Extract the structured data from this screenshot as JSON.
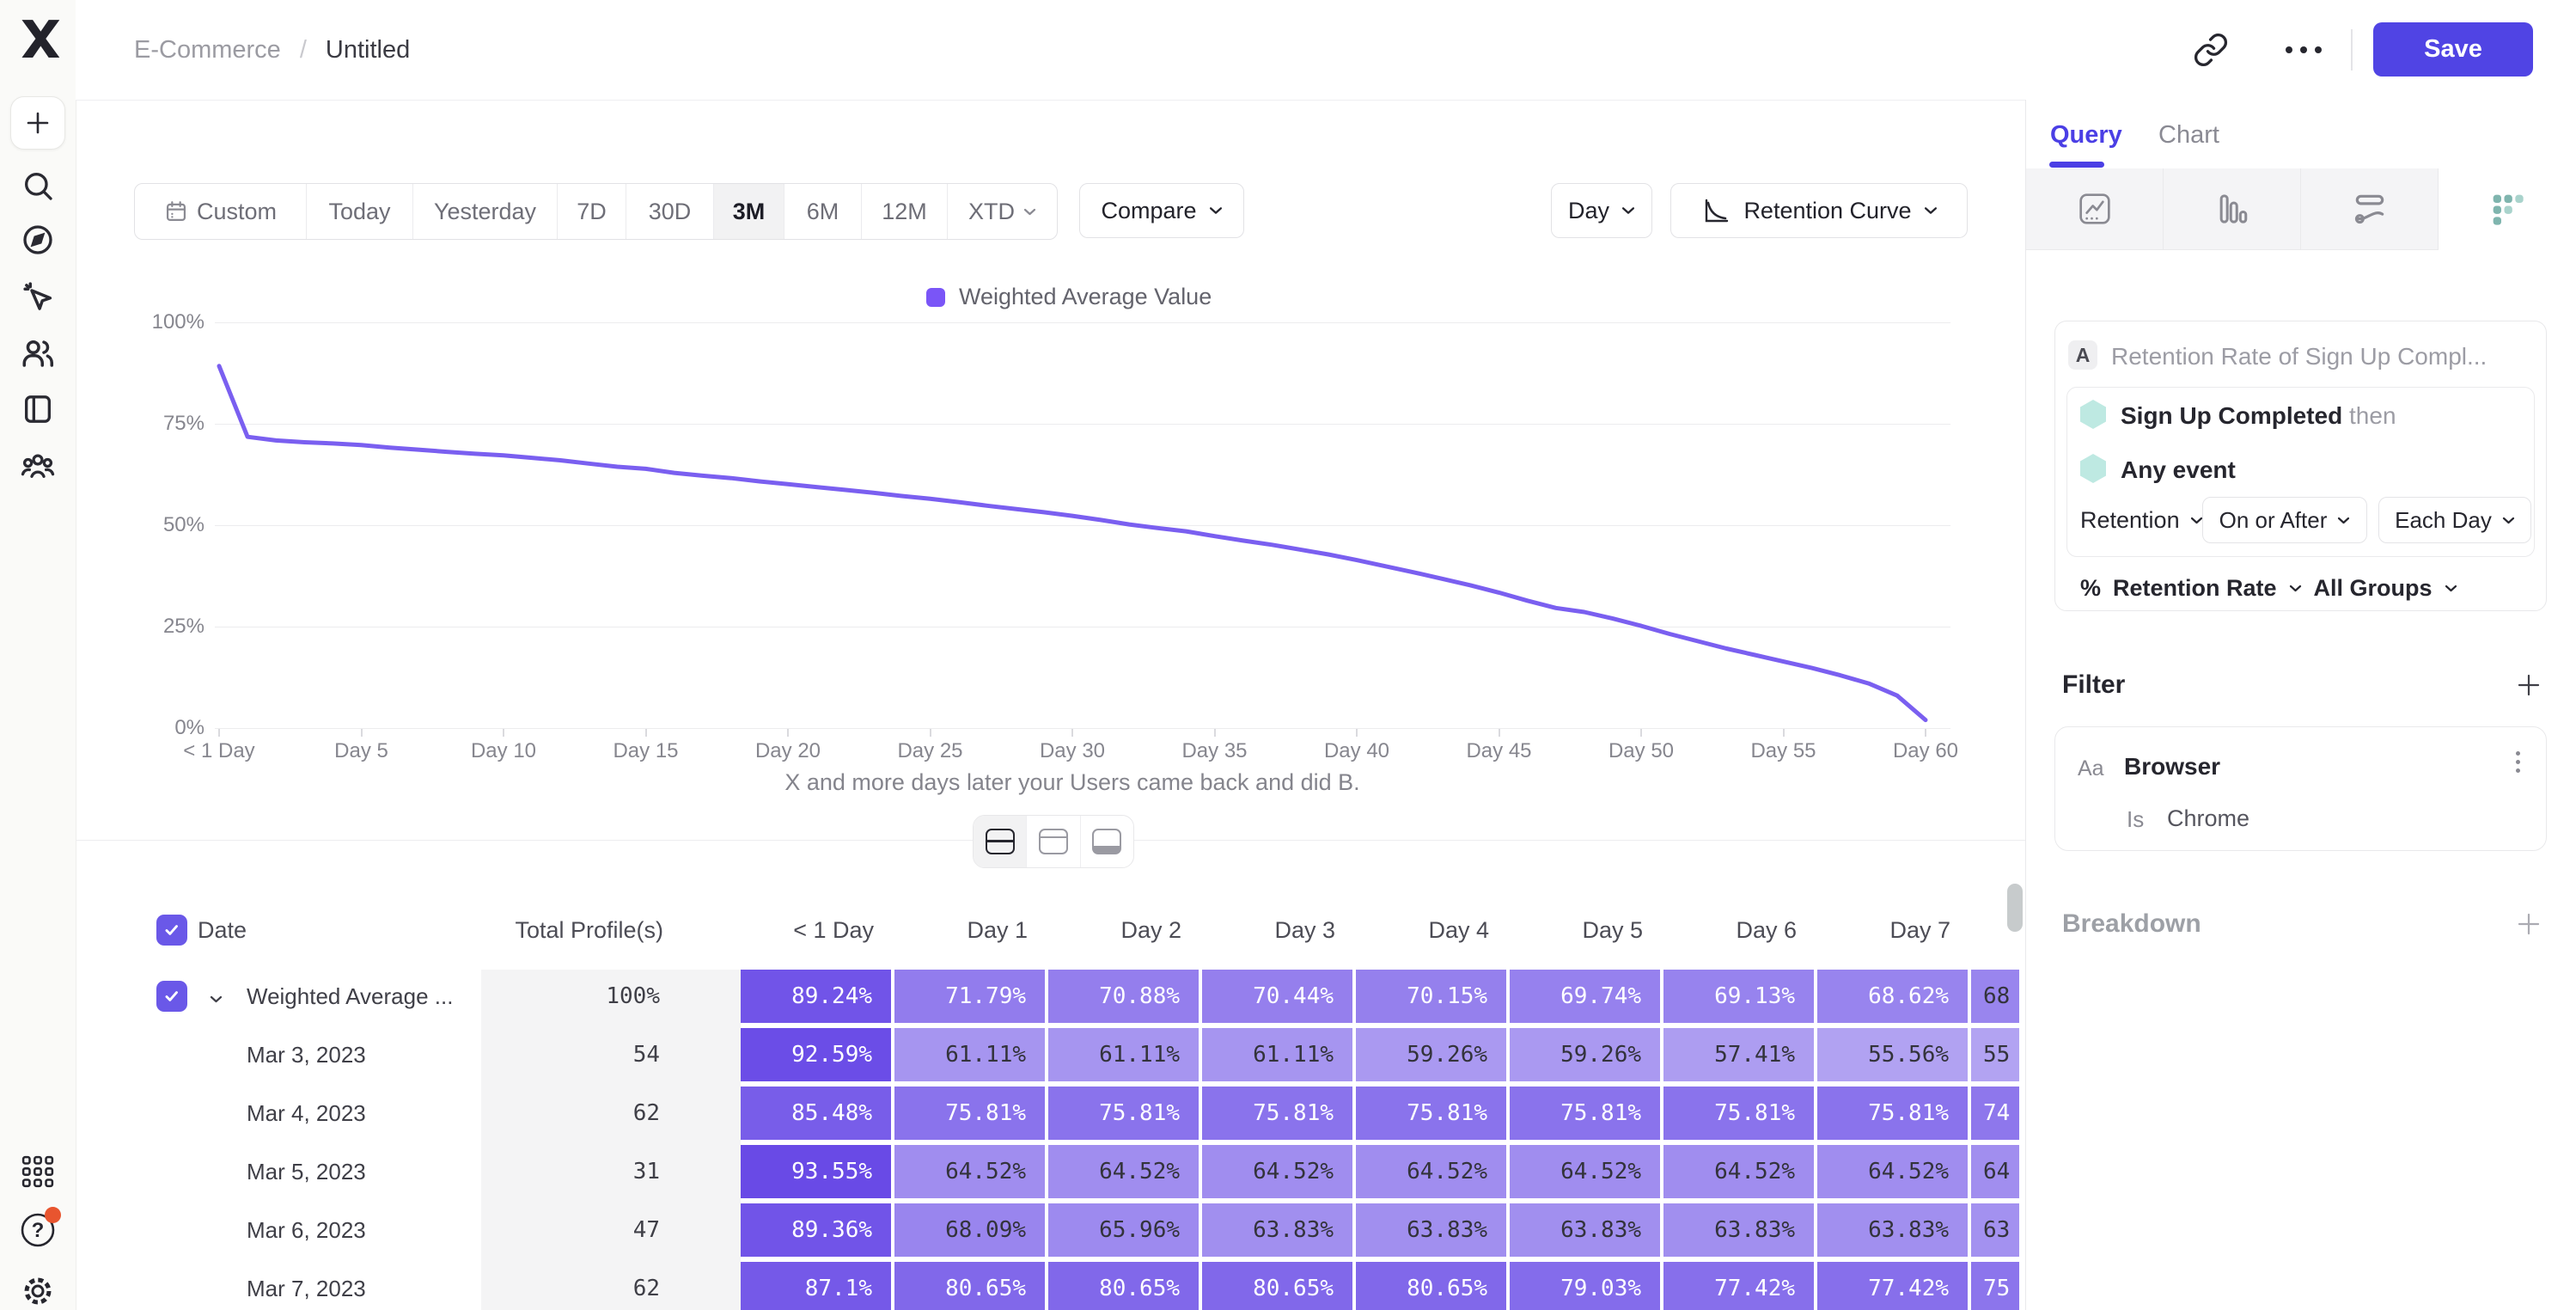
{
  "colors": {
    "accent": "#4b3fe5",
    "save_button": "#5044e4",
    "line": "#7a5ff0",
    "legend_swatch": "#7a55f7",
    "cell_scale_light": "#b2a3f2",
    "cell_scale_dark": "#6647e6",
    "hexagon": "#bee9e2",
    "notification_dot": "#e8552f"
  },
  "sidebar": {
    "icons": [
      "logo",
      "new-plus",
      "search",
      "compass",
      "pointer-click",
      "users",
      "notebook",
      "people-group",
      "apps-grid",
      "help",
      "settings-gear"
    ]
  },
  "breadcrumb": {
    "section": "E-Commerce",
    "separator": "/",
    "page": "Untitled"
  },
  "topbar": {
    "save": "Save"
  },
  "toolbar": {
    "ranges": [
      "Custom",
      "Today",
      "Yesterday",
      "7D",
      "30D",
      "3M",
      "6M",
      "12M",
      "XTD"
    ],
    "active_range": "3M",
    "compare": "Compare",
    "granularity": "Day",
    "chart_type": "Retention Curve"
  },
  "chart_data": {
    "type": "line",
    "title": "",
    "legend": [
      "Weighted Average Value"
    ],
    "legend_position": "top",
    "grid": "horizontal",
    "xlabel": "X and more days later your Users came back and did B.",
    "x_tick_labels": [
      "< 1 Day",
      "Day 5",
      "Day 10",
      "Day 15",
      "Day 20",
      "Day 25",
      "Day 30",
      "Day 35",
      "Day 40",
      "Day 45",
      "Day 50",
      "Day 55",
      "Day 60"
    ],
    "y_tick_labels": [
      "100%",
      "75%",
      "50%",
      "25%",
      "0%"
    ],
    "xlim": [
      0,
      60
    ],
    "ylim": [
      0,
      100
    ],
    "series": [
      {
        "name": "Weighted Average Value",
        "color": "#7a5ff0",
        "x_unit": "day",
        "values": [
          89.24,
          71.79,
          70.88,
          70.44,
          70.15,
          69.74,
          69.13,
          68.62,
          68.1,
          67.6,
          67.2,
          66.6,
          66.0,
          65.2,
          64.4,
          63.9,
          62.9,
          62.2,
          61.6,
          60.8,
          60.1,
          59.4,
          58.7,
          58.0,
          57.2,
          56.5,
          55.7,
          54.8,
          54.0,
          53.2,
          52.3,
          51.3,
          50.2,
          49.3,
          48.5,
          47.3,
          46.2,
          45.2,
          44.0,
          42.8,
          41.4,
          39.9,
          38.4,
          36.8,
          35.2,
          33.4,
          31.4,
          29.6,
          28.6,
          27.0,
          25.2,
          23.2,
          21.4,
          19.6,
          18.0,
          16.4,
          14.8,
          13.0,
          11.0,
          8.0,
          2.0
        ]
      }
    ]
  },
  "view_toggles": {
    "options": [
      "split-view",
      "chart-only-view",
      "table-only-view"
    ],
    "active": "split-view"
  },
  "table": {
    "select_all_checked": true,
    "columns": [
      "Date",
      "Total Profile(s)",
      "< 1 Day",
      "Day 1",
      "Day 2",
      "Day 3",
      "Day 4",
      "Day 5",
      "Day 6",
      "Day 7"
    ],
    "rows": [
      {
        "label": "Weighted Average ...",
        "checked": true,
        "expandable": true,
        "total": "100%",
        "values": [
          "89.24%",
          "71.79%",
          "70.88%",
          "70.44%",
          "70.15%",
          "69.74%",
          "69.13%",
          "68.62%",
          "68"
        ]
      },
      {
        "label": "Mar 3, 2023",
        "total": "54",
        "values": [
          "92.59%",
          "61.11%",
          "61.11%",
          "61.11%",
          "59.26%",
          "59.26%",
          "57.41%",
          "55.56%",
          "55"
        ]
      },
      {
        "label": "Mar 4, 2023",
        "total": "62",
        "values": [
          "85.48%",
          "75.81%",
          "75.81%",
          "75.81%",
          "75.81%",
          "75.81%",
          "75.81%",
          "75.81%",
          "74"
        ]
      },
      {
        "label": "Mar 5, 2023",
        "total": "31",
        "values": [
          "93.55%",
          "64.52%",
          "64.52%",
          "64.52%",
          "64.52%",
          "64.52%",
          "64.52%",
          "64.52%",
          "64"
        ]
      },
      {
        "label": "Mar 6, 2023",
        "total": "47",
        "values": [
          "89.36%",
          "68.09%",
          "65.96%",
          "63.83%",
          "63.83%",
          "63.83%",
          "63.83%",
          "63.83%",
          "63"
        ]
      },
      {
        "label": "Mar 7, 2023",
        "total": "62",
        "values": [
          "87.1%",
          "80.65%",
          "80.65%",
          "80.65%",
          "80.65%",
          "79.03%",
          "77.42%",
          "77.42%",
          "75"
        ]
      }
    ]
  },
  "panel": {
    "tabs": [
      {
        "label": "Query",
        "active": true
      },
      {
        "label": "Chart",
        "active": false
      }
    ],
    "report_type_tabs": [
      "insights-chart",
      "bar-chart",
      "flows",
      "retention-grid"
    ],
    "active_report_type": "retention-grid",
    "query_card": {
      "badge": "A",
      "title": "Retention Rate of Sign Up Compl...",
      "steps": [
        {
          "event": "Sign Up Completed",
          "suffix": "then"
        },
        {
          "event": "Any event",
          "suffix": ""
        }
      ],
      "retention_dropdown": "Retention",
      "on_or_after_dropdown": "On or After",
      "each_day_dropdown": "Each Day",
      "measure_prefix": "%",
      "measure": "Retention Rate",
      "scope": "All Groups"
    },
    "filter_section": {
      "title": "Filter",
      "card": {
        "type_badge": "Aa",
        "property": "Browser",
        "operator": "Is",
        "value": "Chrome"
      }
    },
    "breakdown_section": {
      "title": "Breakdown"
    }
  }
}
